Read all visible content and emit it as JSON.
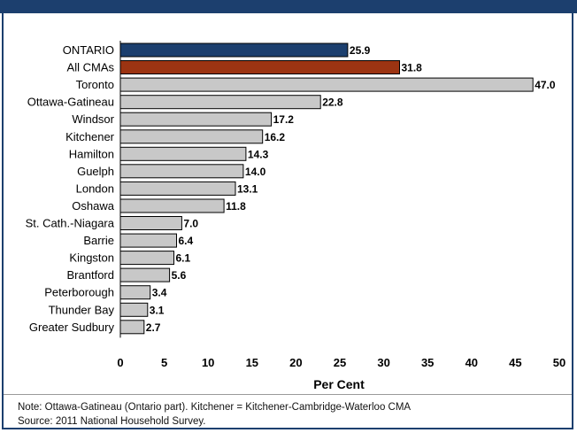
{
  "chart_data": {
    "type": "bar",
    "orientation": "horizontal",
    "categories": [
      "ONTARIO",
      "All CMAs",
      "Toronto",
      "Ottawa-Gatineau",
      "Windsor",
      "Kitchener",
      "Hamilton",
      "Guelph",
      "London",
      "Oshawa",
      "St. Cath.-Niagara",
      "Barrie",
      "Kingston",
      "Brantford",
      "Peterborough",
      "Thunder Bay",
      "Greater Sudbury"
    ],
    "values": [
      25.9,
      31.8,
      47.0,
      22.8,
      17.2,
      16.2,
      14.3,
      14.0,
      13.1,
      11.8,
      7.0,
      6.4,
      6.1,
      5.6,
      3.4,
      3.1,
      2.7
    ],
    "value_labels": [
      "25.9",
      "31.8",
      "47.0",
      "22.8",
      "17.2",
      "16.2",
      "14.3",
      "14.0",
      "13.1",
      "11.8",
      "7.0",
      "6.4",
      "6.1",
      "5.6",
      "3.4",
      "3.1",
      "2.7"
    ],
    "bar_colors": [
      "#1c3f6e",
      "#9c3412",
      "#c8c8c8",
      "#c8c8c8",
      "#c8c8c8",
      "#c8c8c8",
      "#c8c8c8",
      "#c8c8c8",
      "#c8c8c8",
      "#c8c8c8",
      "#c8c8c8",
      "#c8c8c8",
      "#c8c8c8",
      "#c8c8c8",
      "#c8c8c8",
      "#c8c8c8",
      "#c8c8c8"
    ],
    "xlabel": "Per Cent",
    "xlim": [
      0,
      50
    ],
    "xticks": [
      "0",
      "5",
      "10",
      "15",
      "20",
      "25",
      "30",
      "35",
      "40",
      "45",
      "50"
    ],
    "grid": false,
    "title": ""
  },
  "notes": {
    "note": "Note: Ottawa-Gatineau (Ontario part). Kitchener = Kitchener-Cambridge-Waterloo CMA",
    "source": "Source: 2011 National Household Survey."
  },
  "colors": {
    "header": "#1c3f6e",
    "ontario_bar": "#1c3f6e",
    "cma_bar": "#9c3412",
    "default_bar": "#c8c8c8"
  }
}
